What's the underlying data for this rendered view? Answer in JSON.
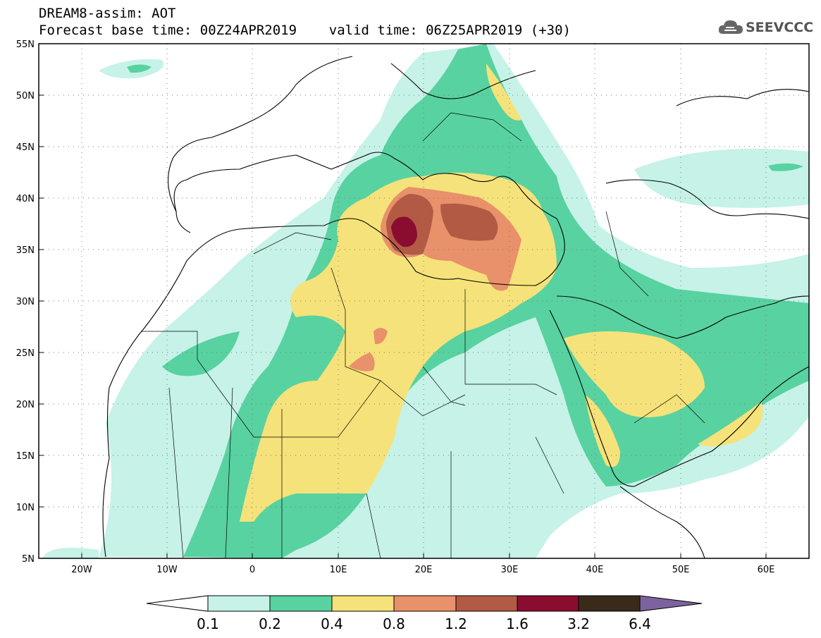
{
  "header": {
    "line1": "DREAM8-assim: AOT",
    "line2": "Forecast base time: 00Z24APR2019    valid time: 06Z25APR2019 (+30)"
  },
  "logo": {
    "text": "SEEVCCC",
    "icon": "cloud-icon"
  },
  "map": {
    "lon_range": [
      -25,
      65
    ],
    "lat_range": [
      5,
      55
    ],
    "lat_ticks": [
      "5N",
      "10N",
      "15N",
      "20N",
      "25N",
      "30N",
      "35N",
      "40N",
      "45N",
      "50N",
      "55N"
    ],
    "lon_ticks": [
      "20W",
      "10W",
      "0",
      "10E",
      "20E",
      "30E",
      "40E",
      "50E",
      "60E"
    ],
    "grid": true
  },
  "colorbar": {
    "labels": [
      "0.1",
      "0.2",
      "0.4",
      "0.8",
      "1.2",
      "1.6",
      "3.2",
      "6.4"
    ],
    "colors": [
      "#ffffff",
      "#c6f2e8",
      "#58d2a0",
      "#f6e27a",
      "#e8916a",
      "#b35a45",
      "#8a0c2e",
      "#3a2a1a",
      "#7d62a0"
    ]
  }
}
